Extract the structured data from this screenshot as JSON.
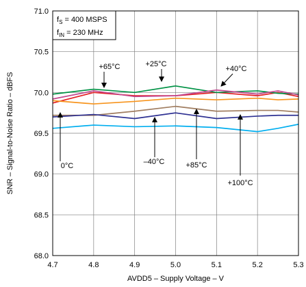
{
  "chart_data": {
    "type": "line",
    "title": "",
    "xlabel": "AVDD5 – Supply Voltage – V",
    "ylabel": "SNR – Signal-to-Noise Ratio – dBFS",
    "xlim": [
      4.7,
      5.3
    ],
    "ylim": [
      68.0,
      71.0
    ],
    "grid": true,
    "x_ticks": [
      "4.7",
      "4.8",
      "4.9",
      "5.0",
      "5.1",
      "5.2",
      "5.3"
    ],
    "y_ticks": [
      "68.0",
      "68.5",
      "69.0",
      "69.5",
      "70.0",
      "70.5",
      "71.0"
    ],
    "conditions": {
      "fs": {
        "main": "f",
        "sub": "S",
        "rest": " = 400 MSPS"
      },
      "fin": {
        "main": "f",
        "sub": "IN",
        "rest": " = 230 MHz"
      }
    },
    "x": [
      4.7,
      4.8,
      4.9,
      5.0,
      5.1,
      5.2,
      5.25,
      5.3
    ],
    "series": [
      {
        "name": "0°C",
        "color": "#e31e24",
        "values": [
          69.87,
          70.0,
          69.96,
          69.96,
          70.0,
          69.96,
          70.0,
          69.95
        ]
      },
      {
        "name": "+25°C",
        "color": "#009245",
        "values": [
          69.98,
          70.04,
          70.0,
          70.08,
          70.0,
          70.02,
          69.99,
          69.98
        ]
      },
      {
        "name": "+40°C",
        "color": "#c2478f",
        "values": [
          69.92,
          70.02,
          69.95,
          69.96,
          70.03,
          69.98,
          70.02,
          69.97
        ]
      },
      {
        "name": "+65°C",
        "color": "#f7941d",
        "values": [
          69.9,
          69.86,
          69.89,
          69.93,
          69.91,
          69.93,
          69.91,
          69.92
        ]
      },
      {
        "name": "–40°C",
        "color": "#a07d60",
        "values": [
          69.72,
          69.72,
          69.77,
          69.83,
          69.77,
          69.78,
          69.78,
          69.76
        ]
      },
      {
        "name": "+85°C",
        "color": "#2e3192",
        "values": [
          69.7,
          69.73,
          69.68,
          69.75,
          69.68,
          69.71,
          69.72,
          69.72
        ]
      },
      {
        "name": "+100°C",
        "color": "#00aeef",
        "values": [
          69.56,
          69.6,
          69.58,
          69.59,
          69.57,
          69.52,
          69.56,
          69.61
        ]
      }
    ],
    "annotations": [
      {
        "text": "+65°C",
        "series": "+65°C"
      },
      {
        "text": "+25°C",
        "series": "+25°C"
      },
      {
        "text": "+40°C",
        "series": "+40°C"
      },
      {
        "text": "0°C",
        "series": "0°C"
      },
      {
        "text": "–40°C",
        "series": "–40°C"
      },
      {
        "text": "+85°C",
        "series": "+85°C"
      },
      {
        "text": "+100°C",
        "series": "+100°C"
      }
    ],
    "colors": {
      "grid": "#808080",
      "frame": "#000000",
      "background": "#ffffff"
    }
  }
}
